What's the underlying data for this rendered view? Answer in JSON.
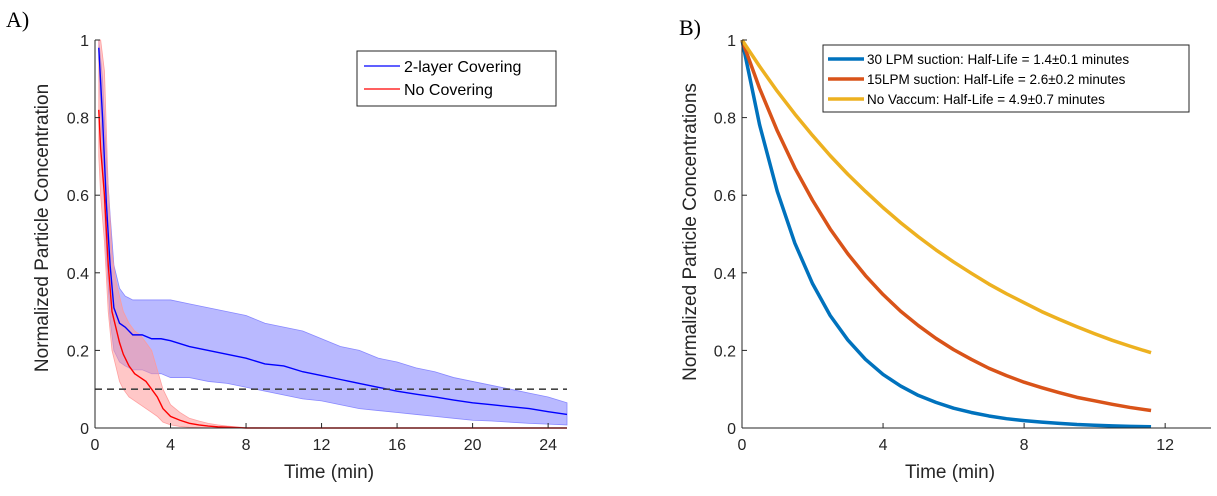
{
  "chart_data": [
    {
      "panel_label": "A)",
      "type": "line",
      "xlabel": "Time (min)",
      "ylabel": "Normalized Particle Concentration",
      "xlim": [
        0,
        25
      ],
      "ylim": [
        0,
        1
      ],
      "xticks": [
        0,
        4,
        8,
        12,
        16,
        20,
        24
      ],
      "yticks": [
        0,
        0.2,
        0.4,
        0.6,
        0.8,
        1
      ],
      "ytick_labels": [
        "0",
        "0.2",
        "0.4",
        "0.6",
        "0.8",
        "1"
      ],
      "legend_position": "top-right",
      "threshold_line": {
        "y": 0.1,
        "style": "dashed",
        "color": "#444444"
      },
      "series": [
        {
          "name": "2-layer Covering",
          "color": "#0000ff",
          "band_color": "#8080ff",
          "x": [
            0.2,
            0.4,
            0.6,
            0.8,
            1.0,
            1.3,
            1.6,
            2.0,
            2.5,
            3.0,
            3.5,
            4.0,
            5.0,
            6.0,
            7.0,
            8.0,
            9.0,
            10.0,
            11.0,
            12.0,
            13.0,
            14.0,
            15.0,
            16.0,
            17.0,
            18.0,
            19.0,
            20.0,
            21.0,
            22.0,
            23.0,
            24.0,
            25.0
          ],
          "values": [
            0.98,
            0.8,
            0.58,
            0.42,
            0.31,
            0.27,
            0.26,
            0.24,
            0.24,
            0.23,
            0.23,
            0.225,
            0.21,
            0.2,
            0.19,
            0.18,
            0.165,
            0.16,
            0.145,
            0.135,
            0.125,
            0.115,
            0.105,
            0.095,
            0.087,
            0.08,
            0.072,
            0.065,
            0.06,
            0.055,
            0.05,
            0.042,
            0.035
          ],
          "lower": [
            0.95,
            0.7,
            0.45,
            0.28,
            0.2,
            0.17,
            0.16,
            0.15,
            0.15,
            0.14,
            0.14,
            0.13,
            0.13,
            0.12,
            0.115,
            0.105,
            0.095,
            0.085,
            0.075,
            0.07,
            0.06,
            0.05,
            0.045,
            0.04,
            0.035,
            0.03,
            0.025,
            0.02,
            0.018,
            0.015,
            0.012,
            0.01,
            0.008
          ],
          "upper": [
            1.0,
            0.9,
            0.7,
            0.55,
            0.42,
            0.36,
            0.34,
            0.33,
            0.33,
            0.33,
            0.33,
            0.33,
            0.32,
            0.31,
            0.3,
            0.29,
            0.27,
            0.26,
            0.25,
            0.23,
            0.21,
            0.2,
            0.18,
            0.17,
            0.155,
            0.145,
            0.13,
            0.12,
            0.11,
            0.1,
            0.09,
            0.08,
            0.065
          ]
        },
        {
          "name": "No Covering",
          "color": "#ff0000",
          "band_color": "#ff9999",
          "x": [
            0.2,
            0.3,
            0.5,
            0.7,
            0.9,
            1.1,
            1.3,
            1.5,
            1.8,
            2.1,
            2.4,
            2.7,
            3.0,
            3.3,
            3.6,
            4.0,
            4.5,
            5.0,
            5.5,
            6.0,
            6.5,
            7.0,
            7.5,
            8.0,
            10.0,
            15.0,
            20.0,
            25.0
          ],
          "values": [
            0.82,
            0.72,
            0.6,
            0.42,
            0.3,
            0.26,
            0.22,
            0.19,
            0.16,
            0.14,
            0.13,
            0.12,
            0.1,
            0.08,
            0.05,
            0.03,
            0.02,
            0.012,
            0.008,
            0.005,
            0.003,
            0.002,
            0.001,
            0.0,
            0.0,
            0.0,
            0.0,
            0.0
          ],
          "lower": [
            0.7,
            0.6,
            0.48,
            0.3,
            0.2,
            0.16,
            0.12,
            0.1,
            0.08,
            0.07,
            0.06,
            0.05,
            0.04,
            0.03,
            0.015,
            0.008,
            0.004,
            0.002,
            0.001,
            0.0,
            0.0,
            0.0,
            0.0,
            0.0,
            0.0,
            0.0,
            0.0,
            0.0
          ],
          "upper": [
            1.0,
            1.0,
            0.92,
            0.62,
            0.45,
            0.38,
            0.34,
            0.3,
            0.27,
            0.25,
            0.24,
            0.22,
            0.2,
            0.15,
            0.1,
            0.06,
            0.04,
            0.025,
            0.018,
            0.012,
            0.008,
            0.005,
            0.003,
            0.001,
            0.0,
            0.0,
            0.0,
            0.0
          ]
        }
      ]
    },
    {
      "panel_label": "B)",
      "type": "line",
      "xlabel": "Time (min)",
      "ylabel": "Normalized Particle Concentrations",
      "xlim": [
        0,
        13.3
      ],
      "ylim": [
        0,
        1
      ],
      "xticks": [
        0,
        4,
        8,
        12
      ],
      "yticks": [
        0,
        0.2,
        0.4,
        0.6,
        0.8,
        1
      ],
      "ytick_labels": [
        "0",
        "0.2",
        "0.4",
        "0.6",
        "0.8",
        "1"
      ],
      "legend_position": "top-right",
      "x": [
        0,
        0.5,
        1,
        1.5,
        2,
        2.5,
        3,
        3.5,
        4,
        4.5,
        5,
        5.5,
        6,
        6.5,
        7,
        7.5,
        8,
        8.5,
        9,
        9.5,
        10,
        10.5,
        11,
        11.6
      ],
      "series": [
        {
          "name": "30 LPM suction: Half-Life = 1.4±0.1 minutes",
          "color": "#0072bd",
          "values": [
            1.0,
            0.781,
            0.61,
            0.476,
            0.372,
            0.29,
            0.227,
            0.177,
            0.138,
            0.108,
            0.084,
            0.066,
            0.051,
            0.04,
            0.031,
            0.024,
            0.019,
            0.015,
            0.012,
            0.009,
            0.007,
            0.0055,
            0.0043,
            0.0032
          ]
        },
        {
          "name": "15LPM suction: Half-Life = 2.6±0.2 minutes",
          "color": "#d95319",
          "values": [
            1.0,
            0.875,
            0.766,
            0.67,
            0.587,
            0.513,
            0.449,
            0.393,
            0.344,
            0.301,
            0.264,
            0.231,
            0.202,
            0.177,
            0.154,
            0.135,
            0.118,
            0.104,
            0.091,
            0.079,
            0.07,
            0.061,
            0.053,
            0.045
          ]
        },
        {
          "name": "No Vaccum: Half-Life = 4.9±0.7 minutes",
          "color": "#edb120",
          "values": [
            1.0,
            0.932,
            0.868,
            0.809,
            0.754,
            0.702,
            0.654,
            0.61,
            0.568,
            0.529,
            0.493,
            0.459,
            0.428,
            0.399,
            0.371,
            0.346,
            0.323,
            0.3,
            0.28,
            0.261,
            0.243,
            0.226,
            0.211,
            0.194
          ]
        }
      ]
    }
  ]
}
